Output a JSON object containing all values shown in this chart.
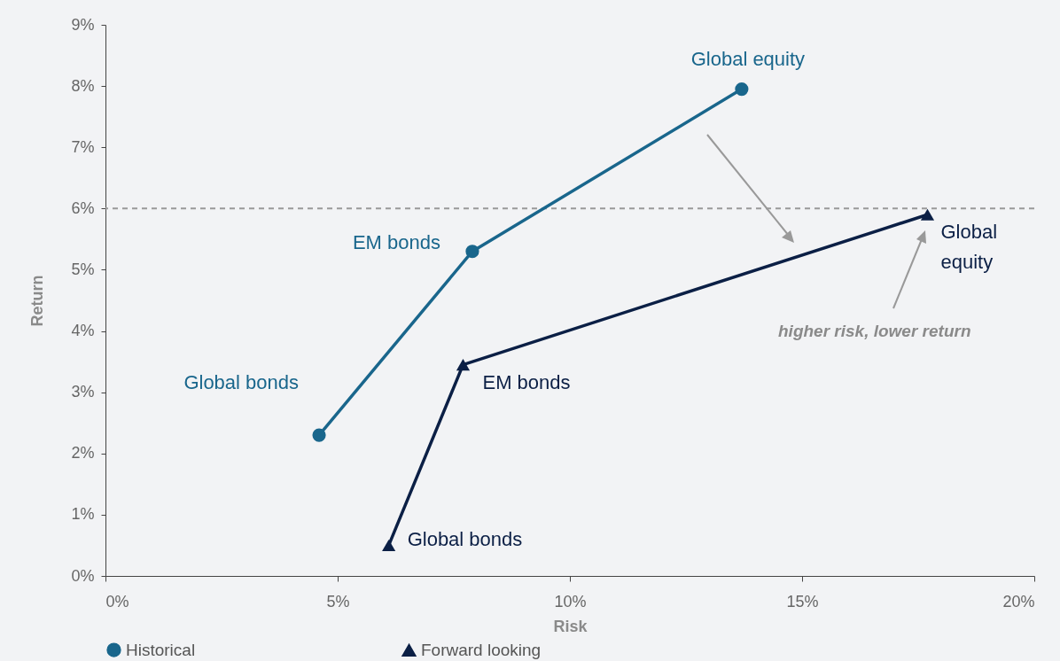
{
  "chart_data": {
    "type": "line",
    "xlabel": "Risk",
    "ylabel": "Return",
    "xlim": [
      0,
      20
    ],
    "xticks": [
      {
        "value": 0,
        "label": "0%"
      },
      {
        "value": 5,
        "label": "5%"
      },
      {
        "value": 10,
        "label": "10%"
      },
      {
        "value": 15,
        "label": "15%"
      },
      {
        "value": 20,
        "label": "20%"
      }
    ],
    "ylim": [
      0,
      9
    ],
    "yticks": [
      {
        "value": 0,
        "label": "0%"
      },
      {
        "value": 1,
        "label": "1%"
      },
      {
        "value": 2,
        "label": "2%"
      },
      {
        "value": 3,
        "label": "3%"
      },
      {
        "value": 4,
        "label": "4%"
      },
      {
        "value": 5,
        "label": "5%"
      },
      {
        "value": 6,
        "label": "6%"
      },
      {
        "value": 7,
        "label": "7%"
      },
      {
        "value": 8,
        "label": "8%"
      },
      {
        "value": 9,
        "label": "9%"
      }
    ],
    "series": [
      {
        "name": "Historical",
        "color": "#19668c",
        "marker": "circle",
        "x": [
          4.6,
          7.9,
          13.7
        ],
        "values": [
          2.3,
          5.3,
          7.95
        ],
        "value_labels": [
          "Global bonds",
          "EM bonds",
          "Global equity"
        ]
      },
      {
        "name": "Forward looking",
        "color": "#0b1f45",
        "marker": "triangle",
        "x": [
          6.1,
          7.7,
          17.7
        ],
        "values": [
          0.5,
          3.45,
          5.9
        ],
        "value_labels": [
          "Global bonds",
          "EM bonds",
          "Global equity"
        ]
      }
    ],
    "ref_lines": [
      {
        "axis": "y",
        "value": 6,
        "color": "#999999",
        "line_style": "dashed"
      }
    ],
    "annotations": [
      "higher risk, lower return"
    ],
    "grid": false,
    "legend": "bottom"
  }
}
